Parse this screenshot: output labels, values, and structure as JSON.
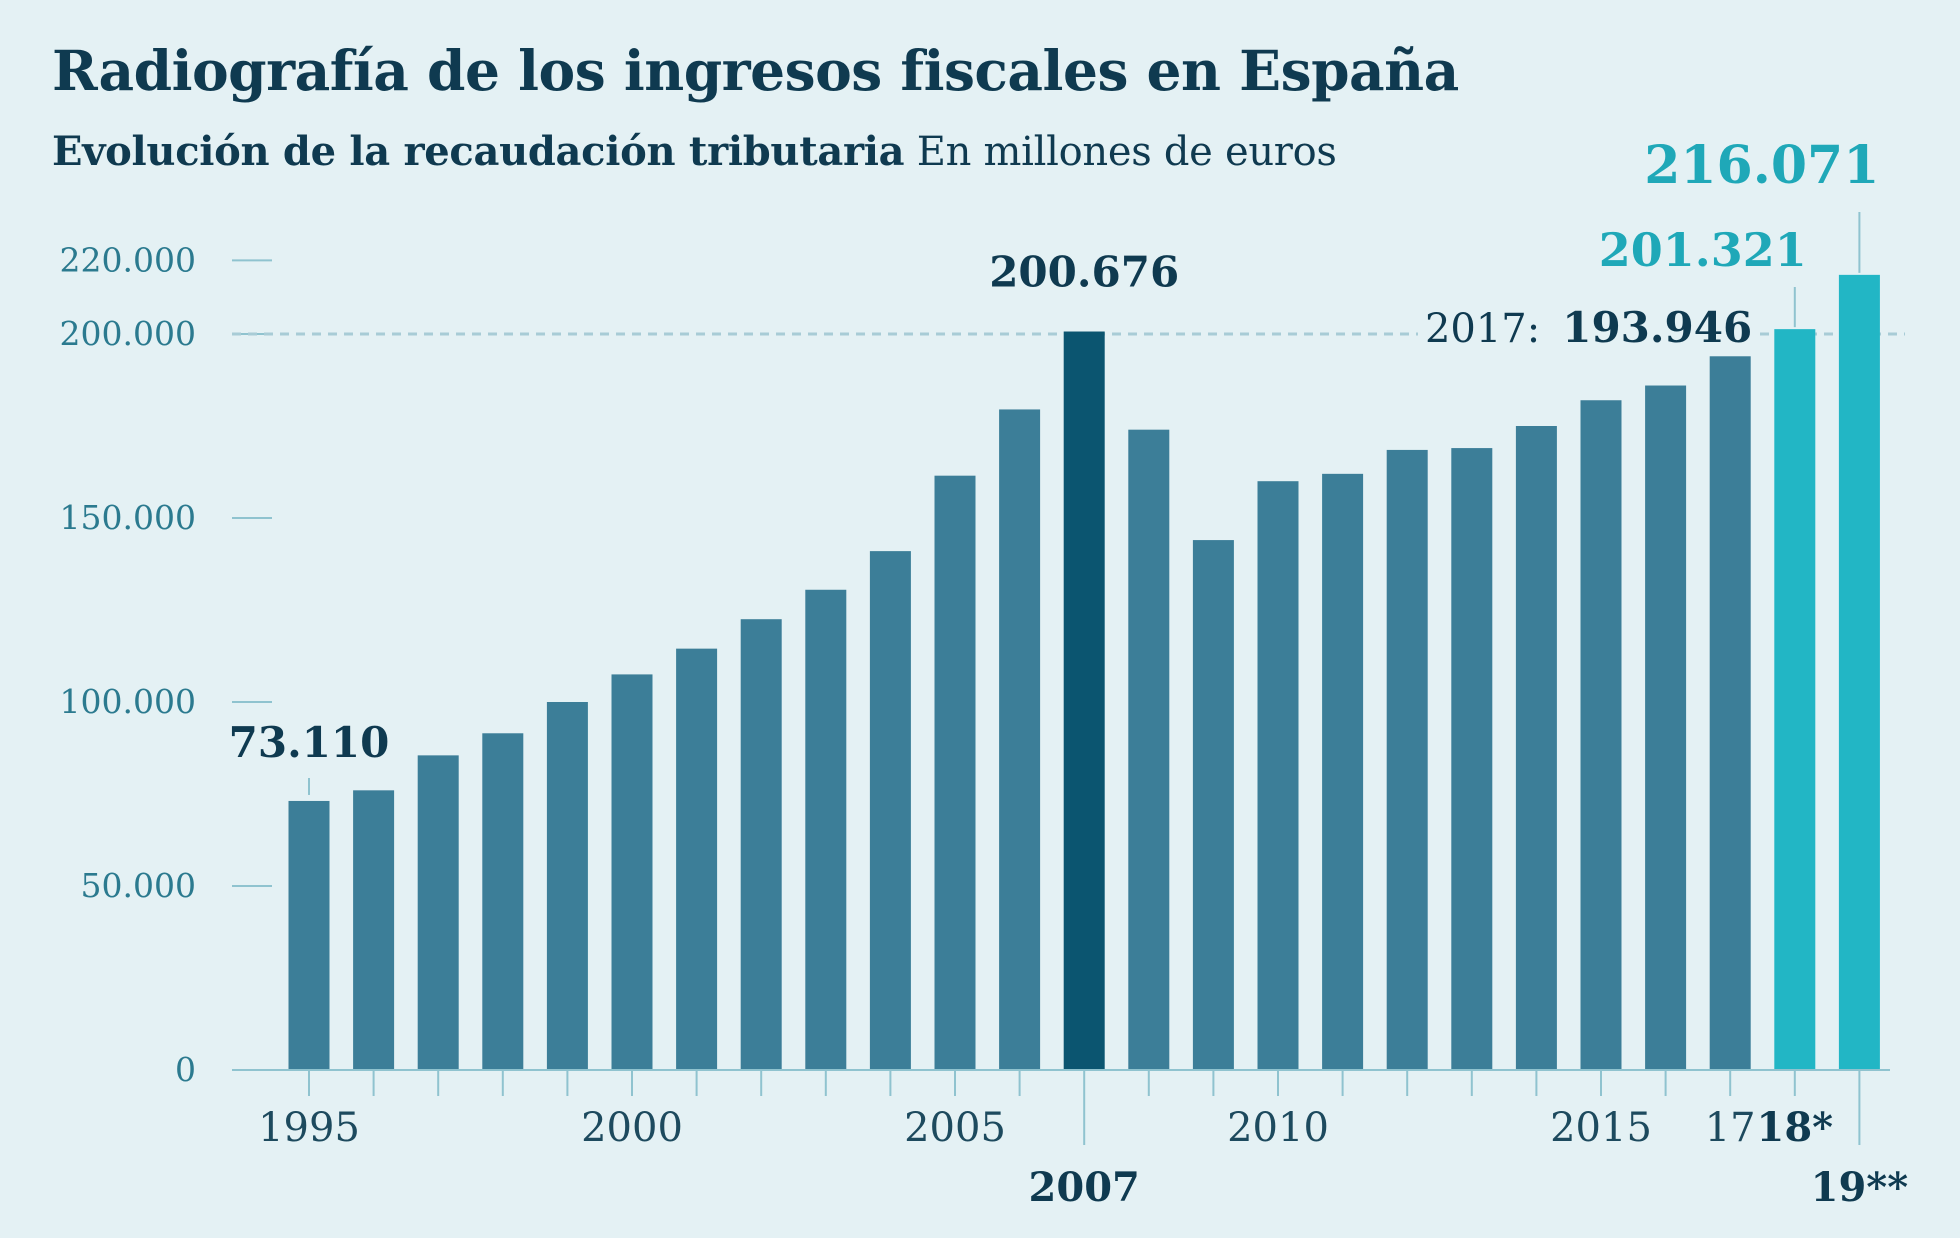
{
  "title": "Radiografía de los ingresos fiscales en España",
  "subtitle_bold": "Evolución de la recaudación tributaria",
  "subtitle_regular": "En millones de euros",
  "colors": {
    "background": "#e4f1f4",
    "bar": "#3c7e98",
    "bar_peak": "#0b5570",
    "bar_forecast": "#22b6c5",
    "axis": "#8fc3cf",
    "text_dark": "#0f3a50",
    "text_axis": "#2b7a8f",
    "text_forecast": "#1fa8b8"
  },
  "chart_data": {
    "type": "bar",
    "categories": [
      "1995",
      "1996",
      "1997",
      "1998",
      "1999",
      "2000",
      "2001",
      "2002",
      "2003",
      "2004",
      "2005",
      "2006",
      "2007",
      "2008",
      "2009",
      "2010",
      "2011",
      "2012",
      "2013",
      "2014",
      "2015",
      "2016",
      "2017",
      "2018",
      "2019"
    ],
    "values": [
      73110,
      76000,
      85500,
      91500,
      100000,
      107500,
      114500,
      122500,
      130500,
      141000,
      161500,
      179500,
      200676,
      174000,
      144000,
      160000,
      162000,
      168500,
      169000,
      175000,
      182000,
      186000,
      193946,
      201321,
      216071
    ],
    "yticks": [
      {
        "value": 0,
        "label": "0"
      },
      {
        "value": 50000,
        "label": "50.000"
      },
      {
        "value": 100000,
        "label": "100.000"
      },
      {
        "value": 150000,
        "label": "150.000"
      },
      {
        "value": 200000,
        "label": "200.000"
      },
      {
        "value": 220000,
        "label": "220.000"
      }
    ],
    "ylim": [
      0,
      220000
    ],
    "xtick_labels": [
      {
        "index": 0,
        "label": "1995",
        "bold": false,
        "row": 1
      },
      {
        "index": 5,
        "label": "2000",
        "bold": false,
        "row": 1
      },
      {
        "index": 10,
        "label": "2005",
        "bold": false,
        "row": 1
      },
      {
        "index": 12,
        "label": "2007",
        "bold": true,
        "row": 2
      },
      {
        "index": 15,
        "label": "2010",
        "bold": false,
        "row": 1
      },
      {
        "index": 20,
        "label": "2015",
        "bold": false,
        "row": 1
      },
      {
        "index": 22,
        "label": "17",
        "bold": false,
        "row": 1
      },
      {
        "index": 23,
        "label": "18*",
        "bold": true,
        "row": 1
      },
      {
        "index": 24,
        "label": "19**",
        "bold": true,
        "row": 2
      }
    ],
    "highlight_index": 12,
    "forecast_indices": [
      23,
      24
    ],
    "reference_line": {
      "value": 200000,
      "style": "dashed"
    },
    "data_labels": [
      {
        "index": 0,
        "text": "73.110",
        "color": "dark"
      },
      {
        "index": 12,
        "text": "200.676",
        "color": "dark"
      },
      {
        "index": 22,
        "prefix": "2017:",
        "text": "193.946",
        "color": "dark"
      },
      {
        "index": 23,
        "text": "201.321",
        "color": "forecast"
      },
      {
        "index": 24,
        "text": "216.071",
        "color": "forecast"
      }
    ],
    "grid": false,
    "legend": "none"
  }
}
